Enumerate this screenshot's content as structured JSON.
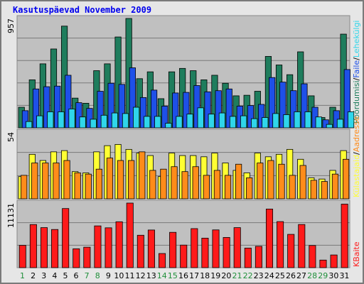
{
  "title": "Kasutuspäevad November 2009",
  "colors": {
    "pages": "#1f7d5d",
    "files": "#1e50e8",
    "hits": "#2fd6ea",
    "visits": "#ffff33",
    "sites": "#ff8c1a",
    "kbytes": "#ff1a1a",
    "panel": "#c0c0c0",
    "weekend_day": "#1f8f3a",
    "weekday": "#000000"
  },
  "chart_data": [
    {
      "type": "bar",
      "name": "hits_panel",
      "ymax_label": "957",
      "ylim": [
        0,
        957
      ],
      "categories": [
        "1",
        "2",
        "3",
        "4",
        "5",
        "6",
        "7",
        "8",
        "9",
        "10",
        "11",
        "12",
        "13",
        "14",
        "15",
        "16",
        "17",
        "18",
        "19",
        "20",
        "21",
        "22",
        "23",
        "24",
        "25",
        "26",
        "27",
        "28",
        "29",
        "30",
        "31"
      ],
      "legend": [
        "Pöördumisi",
        "Faile",
        "Lehekülgi"
      ],
      "series": [
        {
          "name": "Pöördumisi",
          "color": "#1f7d5d",
          "values": [
            180,
            420,
            560,
            690,
            890,
            260,
            215,
            500,
            560,
            795,
            957,
            430,
            490,
            255,
            490,
            520,
            500,
            420,
            460,
            390,
            280,
            285,
            320,
            625,
            550,
            465,
            665,
            280,
            90,
            180,
            820
          ]
        },
        {
          "name": "Faile",
          "color": "#1e50e8",
          "values": [
            150,
            340,
            360,
            365,
            460,
            220,
            170,
            320,
            390,
            380,
            525,
            265,
            330,
            190,
            305,
            310,
            370,
            315,
            325,
            340,
            190,
            195,
            205,
            440,
            400,
            325,
            385,
            180,
            70,
            150,
            510
          ]
        },
        {
          "name": "Lehekülgi",
          "color": "#2fd6ea",
          "values": [
            55,
            105,
            140,
            140,
            165,
            95,
            75,
            110,
            130,
            125,
            180,
            100,
            100,
            40,
            100,
            120,
            175,
            120,
            130,
            100,
            105,
            80,
            90,
            125,
            115,
            140,
            140,
            95,
            30,
            75,
            140
          ]
        }
      ]
    },
    {
      "type": "bar",
      "name": "visits_panel",
      "ymax_label": "54",
      "ylim": [
        0,
        54
      ],
      "categories": [
        "1",
        "2",
        "3",
        "4",
        "5",
        "6",
        "7",
        "8",
        "9",
        "10",
        "11",
        "12",
        "13",
        "14",
        "15",
        "16",
        "17",
        "18",
        "19",
        "20",
        "21",
        "22",
        "23",
        "24",
        "25",
        "26",
        "27",
        "28",
        "29",
        "30",
        "31"
      ],
      "legend": [
        "Külastajaid",
        "Aadresse"
      ],
      "series": [
        {
          "name": "Külastajaid",
          "color": "#ffff33",
          "values": [
            18,
            36,
            31,
            38,
            39,
            22,
            21,
            38,
            43,
            44,
            40,
            37,
            35,
            18,
            37,
            35,
            35,
            34,
            37,
            29,
            23,
            21,
            37,
            34,
            36,
            40,
            32,
            17,
            16,
            23,
            39
          ]
        },
        {
          "name": "Aadresse",
          "color": "#ff8c1a",
          "values": [
            19,
            29,
            29,
            29,
            31,
            21,
            20,
            24,
            33,
            31,
            31,
            38,
            23,
            24,
            26,
            22,
            26,
            19,
            23,
            19,
            28,
            17,
            29,
            31,
            28,
            19,
            27,
            15,
            14,
            20,
            32
          ]
        }
      ]
    },
    {
      "type": "bar",
      "name": "kbytes_panel",
      "ymax_label": "11131",
      "ylim": [
        0,
        11131
      ],
      "categories": [
        "1",
        "2",
        "3",
        "4",
        "5",
        "6",
        "7",
        "8",
        "9",
        "10",
        "11",
        "12",
        "13",
        "14",
        "15",
        "16",
        "17",
        "18",
        "19",
        "20",
        "21",
        "22",
        "23",
        "24",
        "25",
        "26",
        "27",
        "28",
        "29",
        "30",
        "31"
      ],
      "legend": [
        "KBaite"
      ],
      "series": [
        {
          "name": "KBaite",
          "color": "#ff1a1a",
          "values": [
            3850,
            7430,
            6900,
            6580,
            10190,
            3250,
            3530,
            7200,
            6870,
            7910,
            11131,
            5590,
            6490,
            2440,
            6090,
            3890,
            6730,
            5090,
            6510,
            5210,
            6900,
            3380,
            3680,
            10100,
            7940,
            5740,
            7440,
            3820,
            1310,
            2190,
            10950
          ]
        }
      ]
    }
  ],
  "day_labels": [
    "1",
    "2",
    "3",
    "4",
    "5",
    "6",
    "7",
    "8",
    "9",
    "10",
    "11",
    "12",
    "13",
    "14",
    "15",
    "16",
    "17",
    "18",
    "19",
    "20",
    "21",
    "22",
    "23",
    "24",
    "25",
    "26",
    "27",
    "28",
    "29",
    "30",
    "31"
  ],
  "weekend_days": [
    "1",
    "7",
    "8",
    "14",
    "15",
    "21",
    "22",
    "28",
    "29"
  ],
  "legend_right": {
    "top": [
      "Pöördumisi",
      "/",
      "Faile",
      "/",
      "Lehekülgi"
    ],
    "mid": [
      "Külastajaid",
      "/",
      "Aadresse"
    ],
    "bottom": [
      "KBaite"
    ]
  }
}
